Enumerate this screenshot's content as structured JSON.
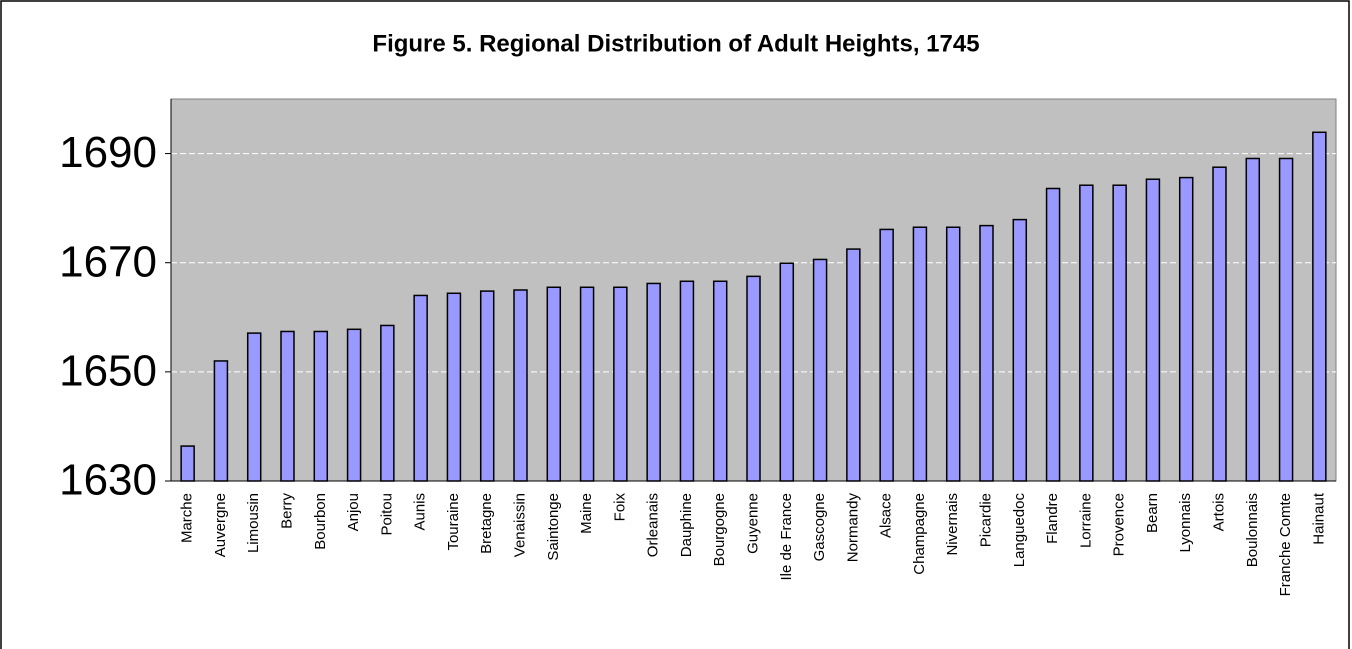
{
  "chart_data": {
    "type": "bar",
    "title": "Figure 5. Regional Distribution of Adult Heights, 1745",
    "categories": [
      "Marche",
      "Auvergne",
      "Limousin",
      "Berry",
      "Bourbon",
      "Anjou",
      "Poitou",
      "Aunis",
      "Touraine",
      "Bretagne",
      "Venaissin",
      "Saintonge",
      "Maine",
      "Foix",
      "Orleanais",
      "Dauphine",
      "Bourgogne",
      "Guyenne",
      "Ile de France",
      "Gascogne",
      "Normandy",
      "Alsace",
      "Champagne",
      "Nivernais",
      "Picardie",
      "Languedoc",
      "Flandre",
      "Lorraine",
      "Provence",
      "Bearn",
      "Lyonnais",
      "Artois",
      "Boulonnais",
      "Franche Comte",
      "Hainaut"
    ],
    "values": [
      1636.4,
      1652,
      1657.1,
      1657.4,
      1657.4,
      1657.8,
      1658.5,
      1664,
      1664.4,
      1664.8,
      1665,
      1665.5,
      1665.5,
      1665.5,
      1666.2,
      1666.6,
      1666.6,
      1667.5,
      1669.9,
      1670.6,
      1672.5,
      1676.1,
      1676.5,
      1676.5,
      1676.8,
      1677.9,
      1683.6,
      1684.2,
      1684.2,
      1685.3,
      1685.6,
      1687.5,
      1689.1,
      1689.1,
      1693.9
    ],
    "color": "#9999ff",
    "plot_background": "#c0c0c0",
    "ylim": [
      1630,
      1700
    ],
    "yticks": [
      1630,
      1650,
      1670,
      1690
    ],
    "grid": true
  }
}
